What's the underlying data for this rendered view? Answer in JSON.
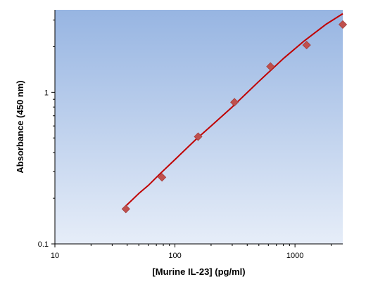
{
  "chart_data": {
    "type": "scatter",
    "xlabel": "[Murine IL-23] (pg/ml)",
    "ylabel": "Absorbance (450 nm)",
    "x_scale": "log",
    "y_scale": "log",
    "xlim": [
      10,
      2500
    ],
    "ylim": [
      0.1,
      3.5
    ],
    "x_ticks": [
      10,
      100,
      1000
    ],
    "x_tick_labels": [
      "10",
      "100",
      "1000"
    ],
    "y_ticks": [
      0.1,
      1
    ],
    "y_tick_labels": [
      "0.1",
      "1"
    ],
    "grid": false,
    "legend": "none",
    "series": [
      {
        "kind": "points",
        "marker": "diamond",
        "color": "#c0504d",
        "x": [
          39,
          78,
          156,
          313,
          625,
          1250,
          2500
        ],
        "y": [
          0.17,
          0.275,
          0.51,
          0.86,
          1.48,
          2.05,
          2.8
        ]
      },
      {
        "kind": "fit",
        "color": "#c00000",
        "x": [
          39,
          50,
          60,
          75,
          100,
          150,
          200,
          300,
          500,
          800,
          1200,
          1800,
          2500
        ],
        "y": [
          0.178,
          0.215,
          0.243,
          0.29,
          0.36,
          0.49,
          0.6,
          0.8,
          1.18,
          1.67,
          2.19,
          2.8,
          3.3
        ]
      }
    ],
    "colors": {
      "plot_bg_top": "#97b5e2",
      "plot_bg_bottom": "#e6edf8",
      "marker": "#c0504d",
      "fit_line": "#c00000",
      "axis": "#000000"
    }
  }
}
